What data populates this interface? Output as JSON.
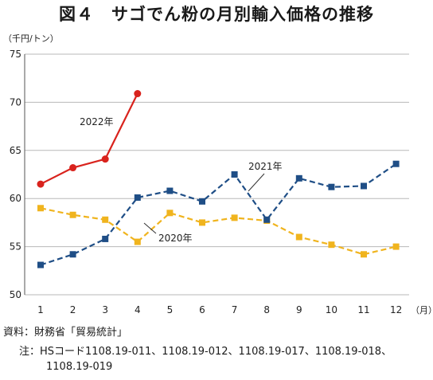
{
  "chart_data": {
    "type": "line",
    "title": "図４　サゴでん粉の月別輸入価格の推移",
    "ylabel": "（千円/トン）",
    "xlabel": "（月）",
    "ylim": [
      50,
      75
    ],
    "yticks": [
      50,
      55,
      60,
      65,
      70,
      75
    ],
    "categories": [
      "1",
      "2",
      "3",
      "4",
      "5",
      "6",
      "7",
      "8",
      "9",
      "10",
      "11",
      "12"
    ],
    "grid": "horizontal",
    "series": [
      {
        "name": "2022年",
        "color": "#d9231d",
        "dash": "solid",
        "marker": "circle",
        "values": [
          61.5,
          63.2,
          64.1,
          70.9,
          null,
          null,
          null,
          null,
          null,
          null,
          null,
          null
        ]
      },
      {
        "name": "2021年",
        "color": "#1f4e86",
        "dash": "dashed",
        "marker": "square",
        "values": [
          53.1,
          54.2,
          55.8,
          60.1,
          60.8,
          59.7,
          62.5,
          57.8,
          62.1,
          61.2,
          61.3,
          63.6
        ]
      },
      {
        "name": "2020年",
        "color": "#f0b41e",
        "dash": "dashed",
        "marker": "square",
        "values": [
          59.0,
          58.3,
          57.8,
          55.5,
          58.5,
          57.5,
          58.0,
          57.7,
          56.0,
          55.2,
          54.2,
          55.0
        ]
      }
    ]
  },
  "notes": {
    "source": "資料：財務省「貿易統計」",
    "note_line1": "注：HSコード1108.19-011、1108.19-012、1108.19-017、1108.19-018、",
    "note_line2": "1108.19-019"
  }
}
